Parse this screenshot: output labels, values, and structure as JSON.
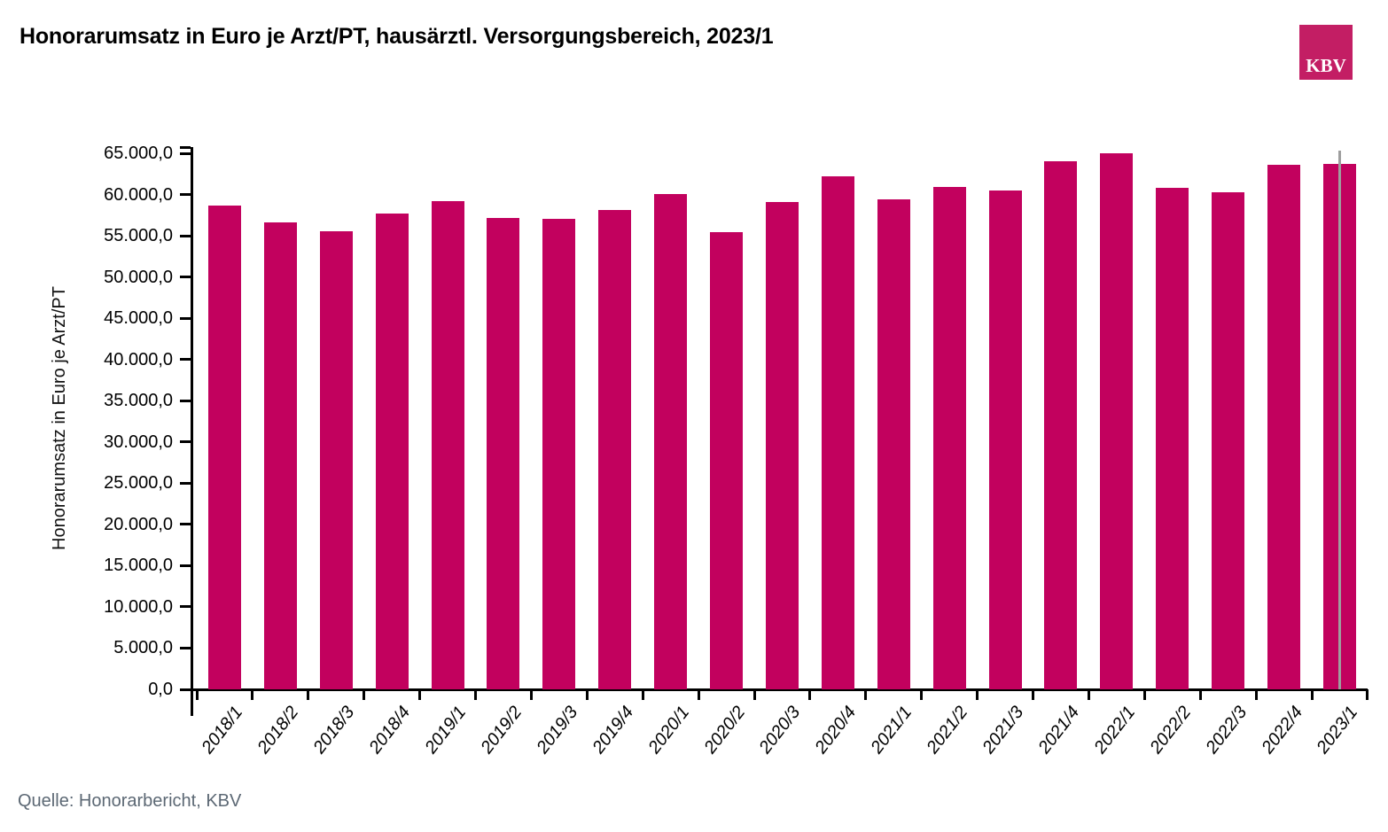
{
  "chart_data": {
    "type": "bar",
    "title": "Honorarumsatz in Euro je Arzt/PT, hausärztl. Versorgungsbereich, 2023/1",
    "ylabel": "Honorarumsatz in Euro je Arzt/PT",
    "xlabel": "",
    "categories": [
      "2018/1",
      "2018/2",
      "2018/3",
      "2018/4",
      "2019/1",
      "2019/2",
      "2019/3",
      "2019/4",
      "2020/1",
      "2020/2",
      "2020/3",
      "2020/4",
      "2021/1",
      "2021/2",
      "2021/3",
      "2021/4",
      "2022/1",
      "2022/2",
      "2022/3",
      "2022/4",
      "2023/1"
    ],
    "values": [
      58700,
      56600,
      55500,
      57700,
      59200,
      57200,
      57000,
      58100,
      60100,
      55400,
      59100,
      62200,
      59400,
      60900,
      60500,
      64000,
      65000,
      60800,
      60300,
      63600,
      63700
    ],
    "ylim": [
      0,
      65000
    ],
    "ytick_step": 5000,
    "ytick_labels": [
      "0,0",
      "5.000,0",
      "10.000,0",
      "15.000,0",
      "20.000,0",
      "25.000,0",
      "30.000,0",
      "35.000,0",
      "40.000,0",
      "45.000,0",
      "50.000,0",
      "55.000,0",
      "60.000,0",
      "65.000,0"
    ],
    "grid": false,
    "legend": "none",
    "bar_color": "#C2015E",
    "axis_color": "#000000",
    "cursor_line": {
      "x_category": "2023/1",
      "color": "#9E9E9E"
    }
  },
  "logo": {
    "text": "KBV",
    "bg_color": "#C31E64",
    "text_color": "#ffffff"
  },
  "source": "Quelle: Honorarbericht, KBV"
}
